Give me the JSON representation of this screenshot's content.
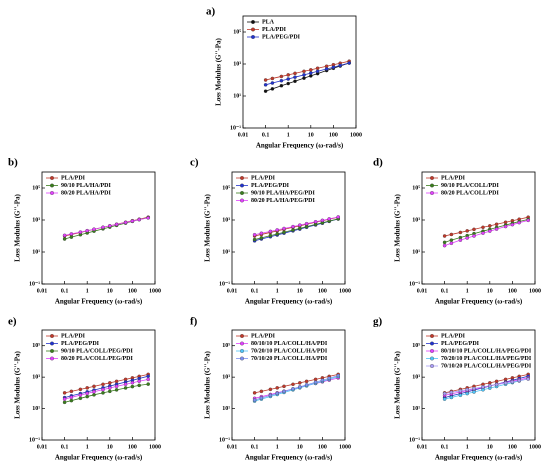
{
  "chart_data": [
    {
      "type": "line",
      "title": "a)",
      "xlabel": "Angular Frequency (ω-rad/s)",
      "ylabel": "Loss Modulus (G''-Pa)",
      "xlog": true,
      "ylog": true,
      "xlim": [
        0.01,
        1000
      ],
      "xticks": [
        0.01,
        0.1,
        1,
        10,
        100,
        1000
      ],
      "ylim": [
        0.1,
        1000000
      ],
      "yticks": [
        {
          "value": 0.1,
          "label": "10⁻¹"
        },
        {
          "value": 10,
          "label": "10¹"
        },
        {
          "value": 1000,
          "label": "10³"
        },
        {
          "value": 100000,
          "label": "10⁵"
        }
      ],
      "x": [
        0.1,
        0.2,
        0.5,
        1,
        2,
        5,
        10,
        20,
        50,
        100,
        200,
        500
      ],
      "series": [
        {
          "name": "PLA",
          "color": "#111111",
          "values": [
            20,
            28,
            44,
            60,
            84,
            130,
            180,
            250,
            390,
            540,
            750,
            1150
          ]
        },
        {
          "name": "PLA/PDI",
          "color": "#c0392b",
          "values": [
            100,
            125,
            167,
            208,
            260,
            350,
            430,
            540,
            720,
            900,
            1120,
            1500
          ]
        },
        {
          "name": "PLA/PEG/PDI",
          "color": "#2233cc",
          "values": [
            50,
            65,
            90,
            115,
            150,
            210,
            270,
            350,
            490,
            630,
            820,
            1150
          ]
        }
      ]
    },
    {
      "type": "line",
      "title": "b)",
      "xlabel": "Angular Frequency (ω-rad/s)",
      "ylabel": "Loss Modulus (G''-Pa)",
      "xlog": true,
      "ylog": true,
      "xlim": [
        0.01,
        1000
      ],
      "xticks": [
        0.01,
        0.1,
        1,
        10,
        100,
        1000
      ],
      "ylim": [
        0.1,
        1000000
      ],
      "yticks": [
        {
          "value": 0.1,
          "label": "10⁻¹"
        },
        {
          "value": 10,
          "label": "10¹"
        },
        {
          "value": 1000,
          "label": "10³"
        },
        {
          "value": 100000,
          "label": "10⁵"
        }
      ],
      "x": [
        0.1,
        0.2,
        0.5,
        1,
        2,
        5,
        10,
        20,
        50,
        100,
        200,
        500
      ],
      "series": [
        {
          "name": "PLA/PDI",
          "color": "#c0392b",
          "values": [
            100,
            125,
            167,
            208,
            260,
            350,
            430,
            540,
            720,
            900,
            1120,
            1500
          ]
        },
        {
          "name": "90/10 PLA/HA/PDI",
          "color": "#3a7d1e",
          "values": [
            65,
            85,
            120,
            155,
            200,
            280,
            360,
            460,
            640,
            820,
            1050,
            1400
          ]
        },
        {
          "name": "80/20 PLA/HA/PDI",
          "color": "#e040fb",
          "values": [
            110,
            135,
            175,
            215,
            265,
            350,
            430,
            530,
            700,
            860,
            1060,
            1350
          ]
        }
      ]
    },
    {
      "type": "line",
      "title": "c)",
      "xlabel": "Angular Frequency (ω-rad/s)",
      "ylabel": "Loss Modulus (G''-Pa)",
      "xlog": true,
      "ylog": true,
      "xlim": [
        0.01,
        1000
      ],
      "xticks": [
        0.01,
        0.1,
        1,
        10,
        100,
        1000
      ],
      "ylim": [
        0.1,
        1000000
      ],
      "yticks": [
        {
          "value": 0.1,
          "label": "10⁻¹"
        },
        {
          "value": 10,
          "label": "10¹"
        },
        {
          "value": 1000,
          "label": "10³"
        },
        {
          "value": 100000,
          "label": "10⁵"
        }
      ],
      "x": [
        0.1,
        0.2,
        0.5,
        1,
        2,
        5,
        10,
        20,
        50,
        100,
        200,
        500
      ],
      "series": [
        {
          "name": "PLA/PDI",
          "color": "#c0392b",
          "values": [
            100,
            125,
            167,
            208,
            260,
            350,
            430,
            540,
            720,
            900,
            1120,
            1500
          ]
        },
        {
          "name": "PLA/PEG/PDI",
          "color": "#2233cc",
          "values": [
            50,
            65,
            90,
            115,
            150,
            210,
            270,
            350,
            490,
            630,
            820,
            1150
          ]
        },
        {
          "name": "90/10 PLA/HA/PEG/PDI",
          "color": "#3a7d1e",
          "values": [
            60,
            76,
            106,
            134,
            171,
            236,
            300,
            383,
            529,
            672,
            858,
            1180
          ]
        },
        {
          "name": "80/20 PLA/HA/PEG/PDI",
          "color": "#e040fb",
          "values": [
            120,
            148,
            194,
            240,
            295,
            388,
            478,
            588,
            774,
            953,
            1172,
            1548
          ]
        }
      ]
    },
    {
      "type": "line",
      "title": "d)",
      "xlabel": "Angular Frequency (ω-rad/s)",
      "ylabel": "Loss Modulus (G''-Pa)",
      "xlog": true,
      "ylog": true,
      "xlim": [
        0.01,
        1000
      ],
      "xticks": [
        0.01,
        0.1,
        1,
        10,
        100,
        1000
      ],
      "ylim": [
        0.1,
        1000000
      ],
      "yticks": [
        {
          "value": 0.1,
          "label": "10⁻¹"
        },
        {
          "value": 10,
          "label": "10¹"
        },
        {
          "value": 1000,
          "label": "10³"
        },
        {
          "value": 100000,
          "label": "10⁵"
        }
      ],
      "x": [
        0.1,
        0.2,
        0.5,
        1,
        2,
        5,
        10,
        20,
        50,
        100,
        200,
        500
      ],
      "series": [
        {
          "name": "PLA/PDI",
          "color": "#c0392b",
          "values": [
            100,
            125,
            167,
            208,
            260,
            350,
            430,
            540,
            720,
            900,
            1120,
            1500
          ]
        },
        {
          "name": "90/10 PLA/COLL/PDI",
          "color": "#3a7d1e",
          "values": [
            40,
            55,
            80,
            105,
            140,
            200,
            260,
            340,
            480,
            620,
            800,
            1100
          ]
        },
        {
          "name": "80/20 PLA/COLL/PDI",
          "color": "#e040fb",
          "values": [
            25,
            35,
            55,
            75,
            100,
            150,
            200,
            270,
            390,
            510,
            680,
            950
          ]
        }
      ]
    },
    {
      "type": "line",
      "title": "e)",
      "xlabel": "Angular Frequency (ω-rad/s)",
      "ylabel": "Loss Modulus (G''-Pa)",
      "xlog": true,
      "ylog": true,
      "xlim": [
        0.01,
        1000
      ],
      "xticks": [
        0.01,
        0.1,
        1,
        10,
        100,
        1000
      ],
      "ylim": [
        0.1,
        1000000
      ],
      "yticks": [
        {
          "value": 0.1,
          "label": "10⁻¹"
        },
        {
          "value": 10,
          "label": "10¹"
        },
        {
          "value": 1000,
          "label": "10³"
        },
        {
          "value": 100000,
          "label": "10⁵"
        }
      ],
      "x": [
        0.1,
        0.2,
        0.5,
        1,
        2,
        5,
        10,
        20,
        50,
        100,
        200,
        500
      ],
      "series": [
        {
          "name": "PLA/PDI",
          "color": "#c0392b",
          "values": [
            100,
            125,
            167,
            208,
            260,
            350,
            430,
            540,
            720,
            900,
            1120,
            1500
          ]
        },
        {
          "name": "PLA/PEG/PDI",
          "color": "#2233cc",
          "values": [
            50,
            65,
            90,
            115,
            150,
            210,
            270,
            350,
            490,
            630,
            820,
            1150
          ]
        },
        {
          "name": "90/10 PLA/COLL/PEG/PDI",
          "color": "#3a7d1e",
          "values": [
            25,
            32,
            45,
            58,
            75,
            100,
            125,
            155,
            205,
            250,
            300,
            360
          ]
        },
        {
          "name": "80/20 PLA/COLL/PEG/PDI",
          "color": "#e040fb",
          "values": [
            40,
            52,
            72,
            92,
            118,
            160,
            205,
            260,
            350,
            440,
            550,
            720
          ]
        }
      ]
    },
    {
      "type": "line",
      "title": "f)",
      "xlabel": "Angular Frequency (ω-rad/s)",
      "ylabel": "Loss Modulus (G''-Pa)",
      "xlog": true,
      "ylog": true,
      "xlim": [
        0.01,
        1000
      ],
      "xticks": [
        0.01,
        0.1,
        1,
        10,
        100,
        1000
      ],
      "ylim": [
        0.1,
        1000000
      ],
      "yticks": [
        {
          "value": 0.1,
          "label": "10⁻¹"
        },
        {
          "value": 10,
          "label": "10¹"
        },
        {
          "value": 1000,
          "label": "10³"
        },
        {
          "value": 100000,
          "label": "10⁵"
        }
      ],
      "x": [
        0.1,
        0.2,
        0.5,
        1,
        2,
        5,
        10,
        20,
        50,
        100,
        200,
        500
      ],
      "series": [
        {
          "name": "PLA/PDI",
          "color": "#c0392b",
          "values": [
            100,
            125,
            167,
            208,
            260,
            350,
            430,
            540,
            720,
            900,
            1120,
            1500
          ]
        },
        {
          "name": "80/10/10 PLA/COLL/HA/PDI",
          "color": "#e040fb",
          "values": [
            45,
            57,
            79,
            101,
            128,
            177,
            225,
            287,
            396,
            504,
            644,
            887
          ]
        },
        {
          "name": "70/20/10 PLA/COLL/HA/PDI",
          "color": "#4fc3f7",
          "values": [
            30,
            40,
            59,
            79,
            106,
            155,
            208,
            278,
            408,
            546,
            732,
            1074
          ]
        },
        {
          "name": "70/10/20 PLA/COLL/HA/PDI",
          "color": "#7b8ff0",
          "values": [
            35,
            47,
            69,
            92,
            123,
            181,
            242,
            324,
            476,
            637,
            854,
            1253
          ]
        }
      ]
    },
    {
      "type": "line",
      "title": "g)",
      "xlabel": "Angular Frequency (ω-rad/s)",
      "ylabel": "Loss Modulus (G''-Pa)",
      "xlog": true,
      "ylog": true,
      "xlim": [
        0.01,
        1000
      ],
      "xticks": [
        0.01,
        0.1,
        1,
        10,
        100,
        1000
      ],
      "ylim": [
        0.1,
        1000000
      ],
      "yticks": [
        {
          "value": 0.1,
          "label": "10⁻¹"
        },
        {
          "value": 10,
          "label": "10¹"
        },
        {
          "value": 1000,
          "label": "10³"
        },
        {
          "value": 100000,
          "label": "10⁵"
        }
      ],
      "x": [
        0.1,
        0.2,
        0.5,
        1,
        2,
        5,
        10,
        20,
        50,
        100,
        200,
        500
      ],
      "series": [
        {
          "name": "PLA/PDI",
          "color": "#c0392b",
          "values": [
            100,
            125,
            167,
            208,
            260,
            350,
            430,
            540,
            720,
            900,
            1120,
            1500
          ]
        },
        {
          "name": "PLA/PEG/PDI",
          "color": "#2233cc",
          "values": [
            50,
            65,
            90,
            115,
            150,
            210,
            270,
            350,
            490,
            630,
            820,
            1150
          ]
        },
        {
          "name": "80/10/10 PLA/COLL/HA/PEG/PDI",
          "color": "#e040fb",
          "values": [
            70,
            86,
            113,
            140,
            172,
            226,
            279,
            343,
            452,
            556,
            684,
            903
          ]
        },
        {
          "name": "70/20/10 PLA/COLL/HA/PEG/PDI",
          "color": "#4fc3f7",
          "values": [
            40,
            51,
            70,
            90,
            114,
            157,
            200,
            255,
            352,
            448,
            572,
            788
          ]
        },
        {
          "name": "70/10/20 PLA/COLL/HA/PEG/PDI",
          "color": "#a99cf5",
          "values": [
            90,
            107,
            135,
            160,
            190,
            239,
            284,
            338,
            426,
            506,
            602,
            757
          ]
        }
      ]
    }
  ]
}
